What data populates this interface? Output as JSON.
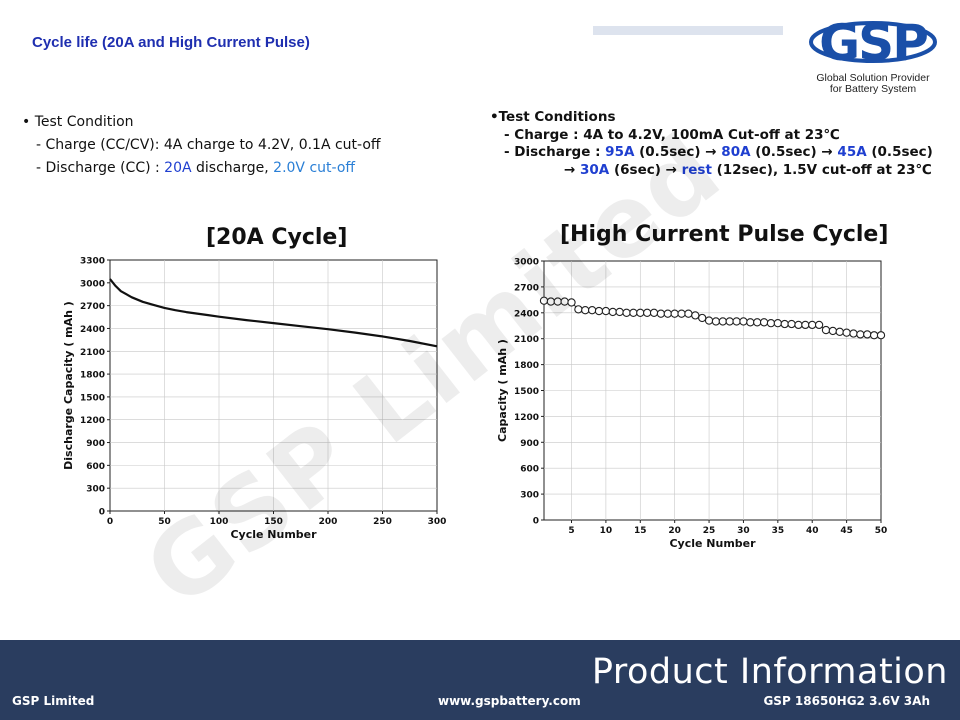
{
  "page": {
    "title": "Cycle life (20A and High Current Pulse)",
    "watermark": "GSP Limited"
  },
  "logo": {
    "mark": "GSP",
    "line1": "Global Solution Provider",
    "line2": "for Battery System"
  },
  "condition_left": {
    "heading": "• Test Condition",
    "charge": "- Charge (CC/CV): 4A charge to 4.2V, 0.1A cut-off",
    "discharge_prefix": "- Discharge (CC) : ",
    "discharge_current": "20A",
    "discharge_mid": " discharge, ",
    "discharge_cutoff": "2.0V cut-off"
  },
  "condition_right": {
    "heading": "•Test Conditions",
    "charge": "- Charge : 4A to 4.2V, 100mA Cut-off at 23℃",
    "discharge_prefix": "- Discharge : ",
    "p1": "95A",
    "t1": " (0.5sec) → ",
    "p2": "80A",
    "t2": " (0.5sec) → ",
    "p3": "45A",
    "t3": " (0.5sec)",
    "line3_prefix": "→ ",
    "p4": "30A",
    "t4": " (6sec) → ",
    "p5": "rest",
    "t5": " (12sec), 1.5V cut-off at 23℃"
  },
  "chart_data": [
    {
      "type": "line",
      "title": "[20A Cycle]",
      "xlabel": "Cycle Number",
      "ylabel": "Discharge Capacity ( mAh )",
      "xlim": [
        0,
        300
      ],
      "ylim": [
        0,
        3300
      ],
      "xticks": [
        0,
        50,
        100,
        150,
        200,
        250,
        300
      ],
      "yticks": [
        0,
        300,
        600,
        900,
        1200,
        1500,
        1800,
        2100,
        2400,
        2700,
        3000,
        3300
      ],
      "grid": true,
      "x": [
        0,
        5,
        10,
        20,
        30,
        40,
        50,
        60,
        70,
        80,
        90,
        100,
        125,
        150,
        175,
        200,
        225,
        250,
        275,
        300
      ],
      "y": [
        3050,
        2960,
        2890,
        2810,
        2750,
        2710,
        2670,
        2640,
        2615,
        2595,
        2575,
        2555,
        2510,
        2470,
        2430,
        2390,
        2345,
        2295,
        2235,
        2165
      ],
      "series_color": "#111111"
    },
    {
      "type": "scatter",
      "title": "[High Current Pulse Cycle]",
      "xlabel": "Cycle Number",
      "ylabel": "Capacity ( mAh )",
      "xlim": [
        1,
        50
      ],
      "ylim": [
        0,
        3000
      ],
      "xticks": [
        5,
        10,
        15,
        20,
        25,
        30,
        35,
        40,
        45,
        50
      ],
      "yticks": [
        0,
        300,
        600,
        900,
        1200,
        1500,
        1800,
        2100,
        2400,
        2700,
        3000
      ],
      "grid": true,
      "x": [
        1,
        2,
        3,
        4,
        5,
        6,
        7,
        8,
        9,
        10,
        11,
        12,
        13,
        14,
        15,
        16,
        17,
        18,
        19,
        20,
        21,
        22,
        23,
        24,
        25,
        26,
        27,
        28,
        29,
        30,
        31,
        32,
        33,
        34,
        35,
        36,
        37,
        38,
        39,
        40,
        41,
        42,
        43,
        44,
        45,
        46,
        47,
        48,
        49,
        50
      ],
      "y": [
        2540,
        2530,
        2530,
        2530,
        2520,
        2440,
        2430,
        2430,
        2420,
        2420,
        2410,
        2410,
        2400,
        2400,
        2400,
        2400,
        2400,
        2390,
        2390,
        2390,
        2390,
        2390,
        2370,
        2340,
        2310,
        2300,
        2300,
        2300,
        2300,
        2300,
        2290,
        2290,
        2290,
        2280,
        2280,
        2270,
        2270,
        2260,
        2260,
        2260,
        2260,
        2200,
        2190,
        2180,
        2170,
        2160,
        2150,
        2150,
        2140,
        2140
      ],
      "marker": "open-circle"
    }
  ],
  "footer": {
    "product_info": "Product Information",
    "company": "GSP Limited",
    "website": "www.gspbattery.com",
    "model": "GSP 18650HG2 3.6V 3Ah"
  }
}
